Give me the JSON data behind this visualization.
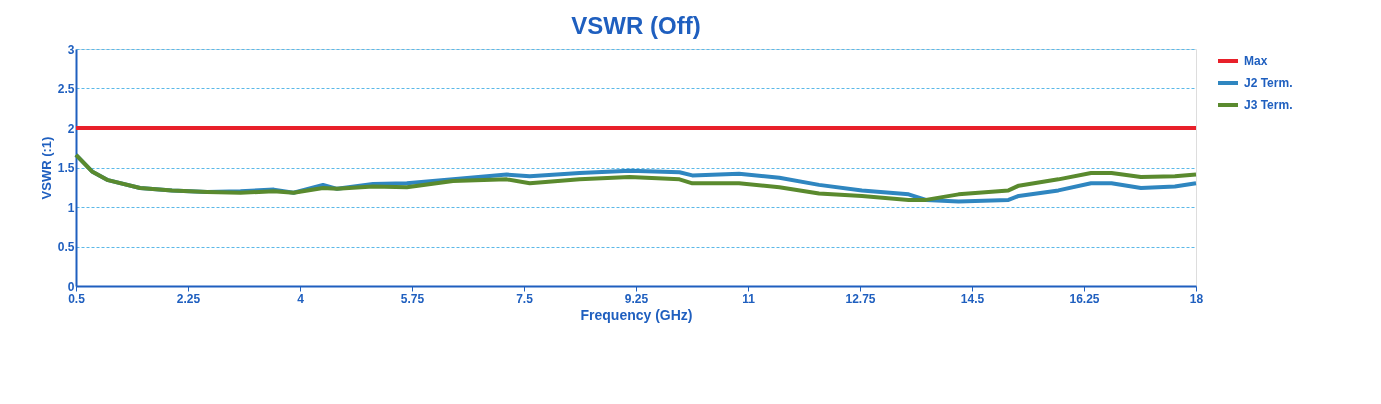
{
  "chart_data": {
    "type": "line",
    "title": "VSWR (Off)",
    "xlabel": "Frequency (GHz)",
    "ylabel": "VSWR (:1)",
    "xlim": [
      0.5,
      18
    ],
    "xticks": [
      0.5,
      2.25,
      4,
      5.75,
      7.5,
      9.25,
      11,
      12.75,
      14.5,
      16.25,
      18
    ],
    "ylim": [
      0,
      3
    ],
    "yticks": [
      0,
      0.5,
      1,
      1.5,
      2,
      2.5,
      3
    ],
    "grid": "y",
    "legend": "right",
    "line_style": "solid",
    "marker": "none",
    "series": [
      {
        "name": "Max",
        "color": "#e8202a",
        "x": [
          0.5,
          18
        ],
        "values": [
          2,
          2
        ]
      },
      {
        "name": "J2 Term.",
        "color": "#2f86c0",
        "x": [
          0.5,
          0.75,
          1.0,
          1.5,
          2.0,
          2.55,
          3.07,
          3.59,
          3.9,
          4.36,
          4.58,
          5.14,
          5.67,
          6.39,
          7.23,
          7.59,
          8.37,
          9.15,
          9.93,
          10.13,
          10.86,
          11.49,
          12.11,
          12.78,
          13.51,
          13.78,
          14.29,
          15.07,
          15.23,
          15.85,
          16.36,
          16.68,
          17.14,
          17.67,
          18.0
        ],
        "values": [
          1.66,
          1.45,
          1.34,
          1.24,
          1.21,
          1.19,
          1.2,
          1.22,
          1.18,
          1.28,
          1.23,
          1.29,
          1.3,
          1.35,
          1.41,
          1.39,
          1.43,
          1.46,
          1.44,
          1.4,
          1.42,
          1.37,
          1.28,
          1.21,
          1.16,
          1.09,
          1.07,
          1.09,
          1.14,
          1.21,
          1.3,
          1.3,
          1.24,
          1.26,
          1.3
        ]
      },
      {
        "name": "J3 Term.",
        "color": "#5a8a2e",
        "x": [
          0.5,
          0.75,
          1.0,
          1.5,
          2.0,
          2.55,
          3.07,
          3.59,
          3.9,
          4.36,
          4.58,
          5.14,
          5.67,
          6.39,
          7.23,
          7.59,
          8.37,
          9.15,
          9.93,
          10.13,
          10.86,
          11.49,
          12.11,
          12.78,
          13.51,
          13.78,
          14.29,
          15.07,
          15.23,
          15.85,
          16.36,
          16.68,
          17.14,
          17.67,
          18.0
        ],
        "values": [
          1.66,
          1.45,
          1.34,
          1.24,
          1.21,
          1.19,
          1.18,
          1.2,
          1.18,
          1.24,
          1.23,
          1.26,
          1.25,
          1.33,
          1.35,
          1.3,
          1.35,
          1.38,
          1.35,
          1.3,
          1.3,
          1.25,
          1.17,
          1.14,
          1.09,
          1.09,
          1.16,
          1.21,
          1.27,
          1.35,
          1.43,
          1.43,
          1.38,
          1.39,
          1.41
        ]
      }
    ]
  }
}
